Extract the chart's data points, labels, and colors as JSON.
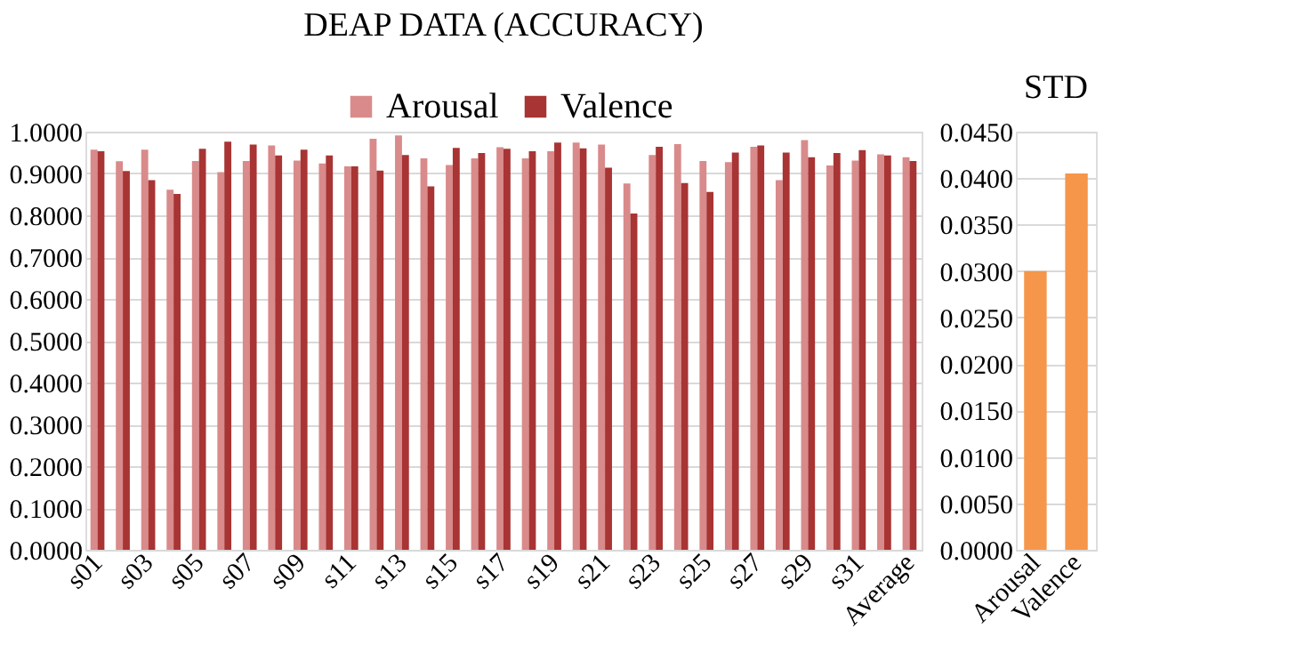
{
  "chart_data": [
    {
      "type": "bar",
      "title": "DEAP DATA (ACCURACY)",
      "categories": [
        "s01",
        null,
        "s03",
        null,
        "s05",
        null,
        "s07",
        null,
        "s09",
        null,
        "s11",
        null,
        "s13",
        null,
        "s15",
        null,
        "s17",
        null,
        "s19",
        null,
        "s21",
        null,
        "s23",
        null,
        "s25",
        null,
        "s27",
        null,
        "s29",
        null,
        "s31",
        null,
        "Average"
      ],
      "series": [
        {
          "name": "Arousal",
          "color": "#d98a8a",
          "values": [
            0.957,
            0.929,
            0.957,
            0.861,
            0.93,
            0.903,
            0.93,
            0.967,
            0.931,
            0.924,
            0.917,
            0.983,
            0.991,
            0.936,
            0.92,
            0.936,
            0.963,
            0.936,
            0.953,
            0.974,
            0.969,
            0.876,
            0.944,
            0.97,
            0.93,
            0.927,
            0.964,
            0.884,
            0.98,
            0.919,
            0.931,
            0.946,
            0.939
          ]
        },
        {
          "name": "Valence",
          "color": "#a83434",
          "values": [
            0.953,
            0.906,
            0.884,
            0.851,
            0.959,
            0.976,
            0.969,
            0.943,
            0.957,
            0.943,
            0.917,
            0.907,
            0.944,
            0.869,
            0.961,
            0.949,
            0.959,
            0.953,
            0.974,
            0.96,
            0.914,
            0.804,
            0.964,
            0.877,
            0.856,
            0.95,
            0.967,
            0.95,
            0.939,
            0.949,
            0.956,
            0.943,
            0.93
          ]
        }
      ],
      "ylim": [
        0,
        1
      ],
      "yticks": [
        {
          "value": 0,
          "label": "0.0000"
        },
        {
          "value": 0.1,
          "label": "0.1000"
        },
        {
          "value": 0.2,
          "label": "0.2000"
        },
        {
          "value": 0.3,
          "label": "0.3000"
        },
        {
          "value": 0.4,
          "label": "0.4000"
        },
        {
          "value": 0.5,
          "label": "0.5000"
        },
        {
          "value": 0.6,
          "label": "0.6000"
        },
        {
          "value": 0.7,
          "label": "0.7000"
        },
        {
          "value": 0.8,
          "label": "0.8000"
        },
        {
          "value": 0.9,
          "label": "0.9000"
        },
        {
          "value": 1,
          "label": "1.0000"
        }
      ],
      "grid": "y",
      "legend": "top"
    },
    {
      "type": "bar",
      "title": "STD",
      "categories": [
        "Arousal",
        "Valence"
      ],
      "values": [
        0.03,
        0.0405
      ],
      "color": "#f5964a",
      "ylim": [
        0,
        0.045
      ],
      "yticks": [
        {
          "value": 0,
          "label": "0.0000"
        },
        {
          "value": 0.005,
          "label": "0.0050"
        },
        {
          "value": 0.01,
          "label": "0.0100"
        },
        {
          "value": 0.015,
          "label": "0.0150"
        },
        {
          "value": 0.02,
          "label": "0.0200"
        },
        {
          "value": 0.025,
          "label": "0.0250"
        },
        {
          "value": 0.03,
          "label": "0.0300"
        },
        {
          "value": 0.035,
          "label": "0.0350"
        },
        {
          "value": 0.04,
          "label": "0.0400"
        },
        {
          "value": 0.045,
          "label": "0.0450"
        }
      ],
      "grid": "y"
    }
  ]
}
